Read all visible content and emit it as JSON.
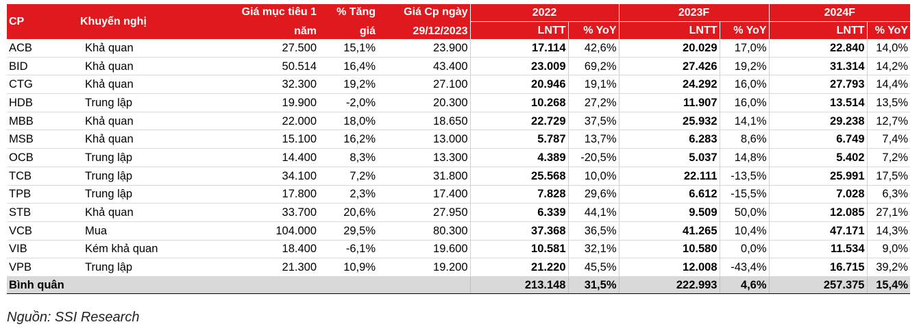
{
  "headers": {
    "cp": "CP",
    "rec": "Khuyến nghị",
    "target_1": "Giá mục tiêu 1",
    "target_2": "năm",
    "upside_1": "% Tăng",
    "upside_2": "giá",
    "price_1": "Giá Cp ngày",
    "price_2": "29/12/2023",
    "y1": "2022",
    "y2": "2023F",
    "y3": "2024F",
    "lntt": "LNTT",
    "yoy": "% YoY"
  },
  "rows": [
    {
      "cp": "ACB",
      "rec": "Khả quan",
      "target": "27.500",
      "upside": "15,1%",
      "price": "23.900",
      "l22": "17.114",
      "y22": "42,6%",
      "l23": "20.029",
      "y23": "17,0%",
      "l24": "22.840",
      "y24": "14,0%"
    },
    {
      "cp": "BID",
      "rec": "Khả quan",
      "target": "50.514",
      "upside": "16,4%",
      "price": "43.400",
      "l22": "23.009",
      "y22": "69,2%",
      "l23": "27.426",
      "y23": "19,2%",
      "l24": "31.314",
      "y24": "14,2%"
    },
    {
      "cp": "CTG",
      "rec": "Khả quan",
      "target": "32.300",
      "upside": "19,2%",
      "price": "27.100",
      "l22": "20.946",
      "y22": "19,1%",
      "l23": "24.292",
      "y23": "16,0%",
      "l24": "27.793",
      "y24": "14,4%"
    },
    {
      "cp": "HDB",
      "rec": "Trung lập",
      "target": "19.900",
      "upside": "-2,0%",
      "price": "20.300",
      "l22": "10.268",
      "y22": "27,2%",
      "l23": "11.907",
      "y23": "16,0%",
      "l24": "13.514",
      "y24": "13,5%"
    },
    {
      "cp": "MBB",
      "rec": "Khả quan",
      "target": "22.000",
      "upside": "18,0%",
      "price": "18.650",
      "l22": "22.729",
      "y22": "37,5%",
      "l23": "25.932",
      "y23": "14,1%",
      "l24": "29.238",
      "y24": "12,7%"
    },
    {
      "cp": "MSB",
      "rec": "Khả quan",
      "target": "15.100",
      "upside": "16,2%",
      "price": "13.000",
      "l22": "5.787",
      "y22": "13,7%",
      "l23": "6.283",
      "y23": "8,6%",
      "l24": "6.749",
      "y24": "7,4%"
    },
    {
      "cp": "OCB",
      "rec": "Trung lập",
      "target": "14.400",
      "upside": "8,3%",
      "price": "13.300",
      "l22": "4.389",
      "y22": "-20,5%",
      "l23": "5.037",
      "y23": "14,8%",
      "l24": "5.402",
      "y24": "7,2%"
    },
    {
      "cp": "TCB",
      "rec": "Trung lập",
      "target": "34.100",
      "upside": "7,2%",
      "price": "31.800",
      "l22": "25.568",
      "y22": "10,0%",
      "l23": "22.111",
      "y23": "-13,5%",
      "l24": "25.991",
      "y24": "17,5%"
    },
    {
      "cp": "TPB",
      "rec": "Trung lập",
      "target": "17.800",
      "upside": "2,3%",
      "price": "17.400",
      "l22": "7.828",
      "y22": "29,6%",
      "l23": "6.612",
      "y23": "-15,5%",
      "l24": "7.028",
      "y24": "6,3%"
    },
    {
      "cp": "STB",
      "rec": "Khả quan",
      "target": "33.700",
      "upside": "20,6%",
      "price": "27.950",
      "l22": "6.339",
      "y22": "44,1%",
      "l23": "9.509",
      "y23": "50,0%",
      "l24": "12.085",
      "y24": "27,1%"
    },
    {
      "cp": "VCB",
      "rec": "Mua",
      "target": "104.000",
      "upside": "29,5%",
      "price": "80.300",
      "l22": "37.368",
      "y22": "36,5%",
      "l23": "41.265",
      "y23": "10,4%",
      "l24": "47.171",
      "y24": "14,3%"
    },
    {
      "cp": "VIB",
      "rec": "Kém khả quan",
      "target": "18.400",
      "upside": "-6,1%",
      "price": "19.600",
      "l22": "10.581",
      "y22": "32,1%",
      "l23": "10.580",
      "y23": "0,0%",
      "l24": "11.534",
      "y24": "9,0%"
    },
    {
      "cp": "VPB",
      "rec": "Trung lập",
      "target": "21.300",
      "upside": "10,9%",
      "price": "19.200",
      "l22": "21.220",
      "y22": "45,5%",
      "l23": "12.008",
      "y23": "-43,4%",
      "l24": "16.715",
      "y24": "39,2%"
    }
  ],
  "average": {
    "label": "Bình quân",
    "l22": "213.148",
    "y22": "31,5%",
    "l23": "222.993",
    "y23": "4,6%",
    "l24": "257.375",
    "y24": "15,4%"
  },
  "source": "Nguồn: SSI Research",
  "colors": {
    "header_bg": "#e0191e",
    "footer_bg": "#d9d9d9"
  }
}
